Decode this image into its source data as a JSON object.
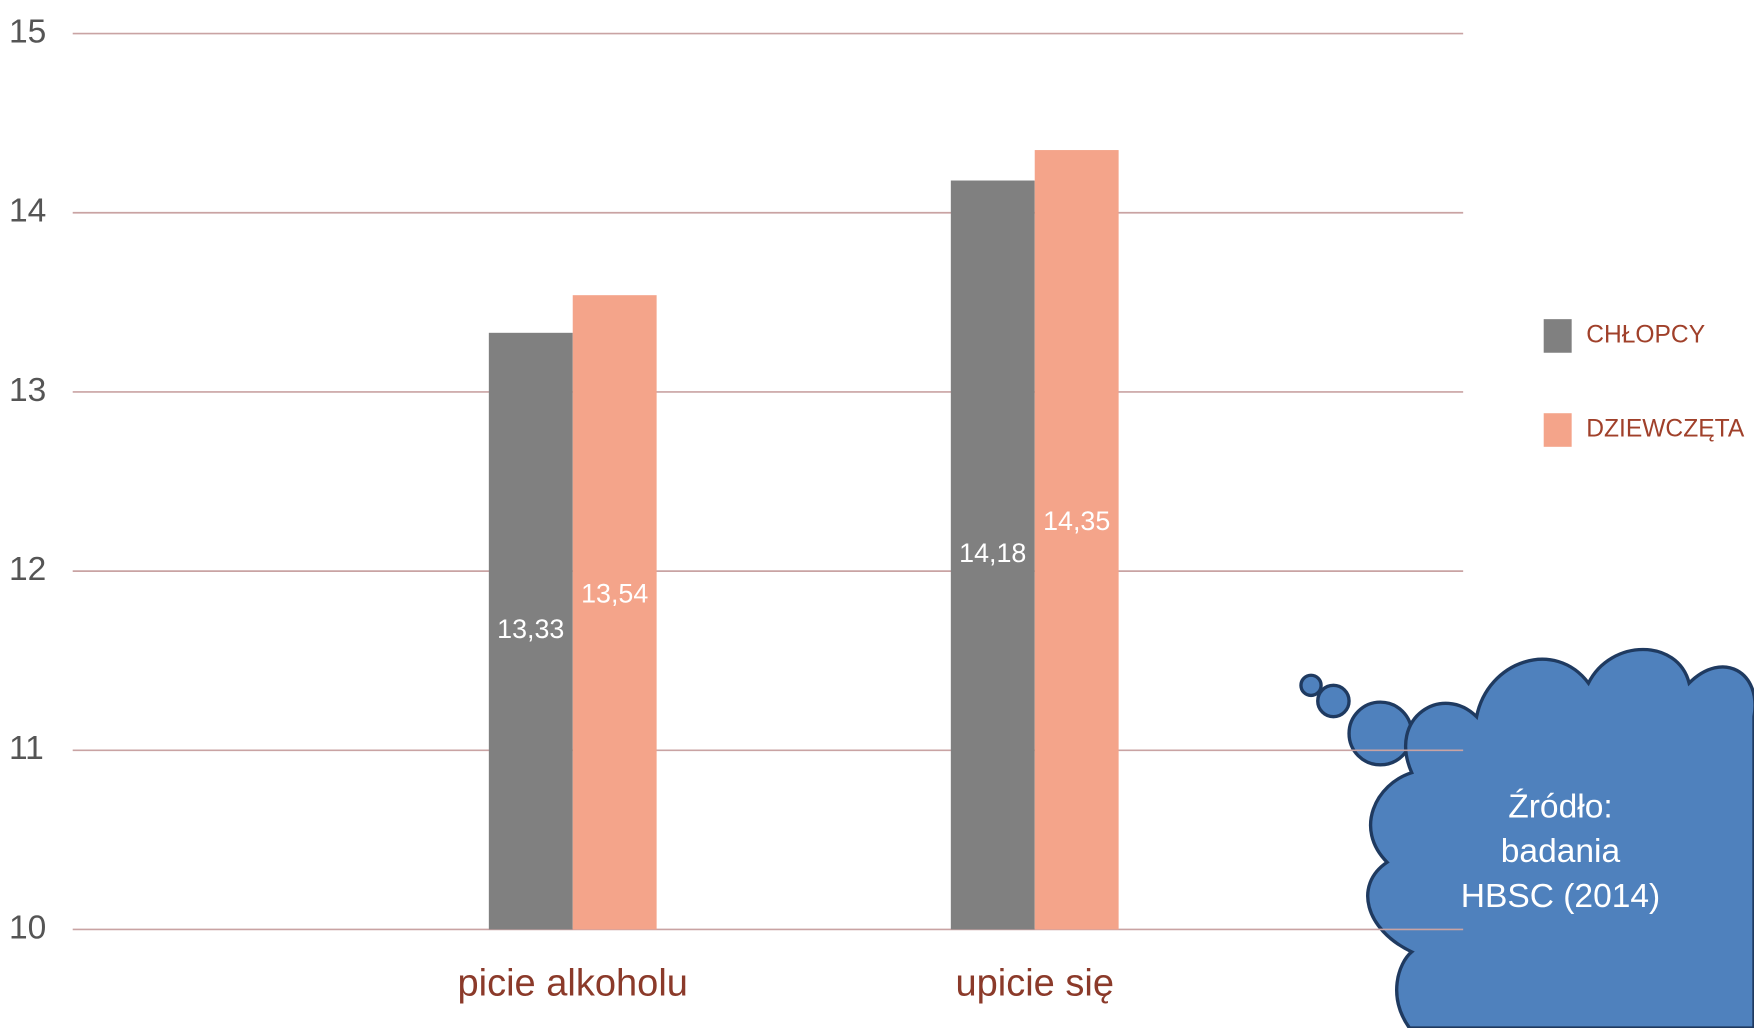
{
  "chart_data": {
    "type": "bar",
    "categories": [
      "picie alkoholu",
      "upicie się"
    ],
    "series": [
      {
        "name": "CHŁOPCY",
        "color": "#808080",
        "values": [
          13.33,
          14.18
        ],
        "value_labels": [
          "13,33",
          "14,18"
        ]
      },
      {
        "name": "DZIEWCZĘTA",
        "color": "#f4a48a",
        "values": [
          13.54,
          14.35
        ],
        "value_labels": [
          "13,54",
          "14,35"
        ]
      }
    ],
    "ylim": [
      10,
      15
    ],
    "yticks": [
      10,
      11,
      12,
      13,
      14,
      15
    ],
    "grid": true,
    "grid_color": "#c9a3a3",
    "legend": "right",
    "annotation": [
      "Źródło:",
      "badania",
      "HBSC (2014)"
    ]
  }
}
